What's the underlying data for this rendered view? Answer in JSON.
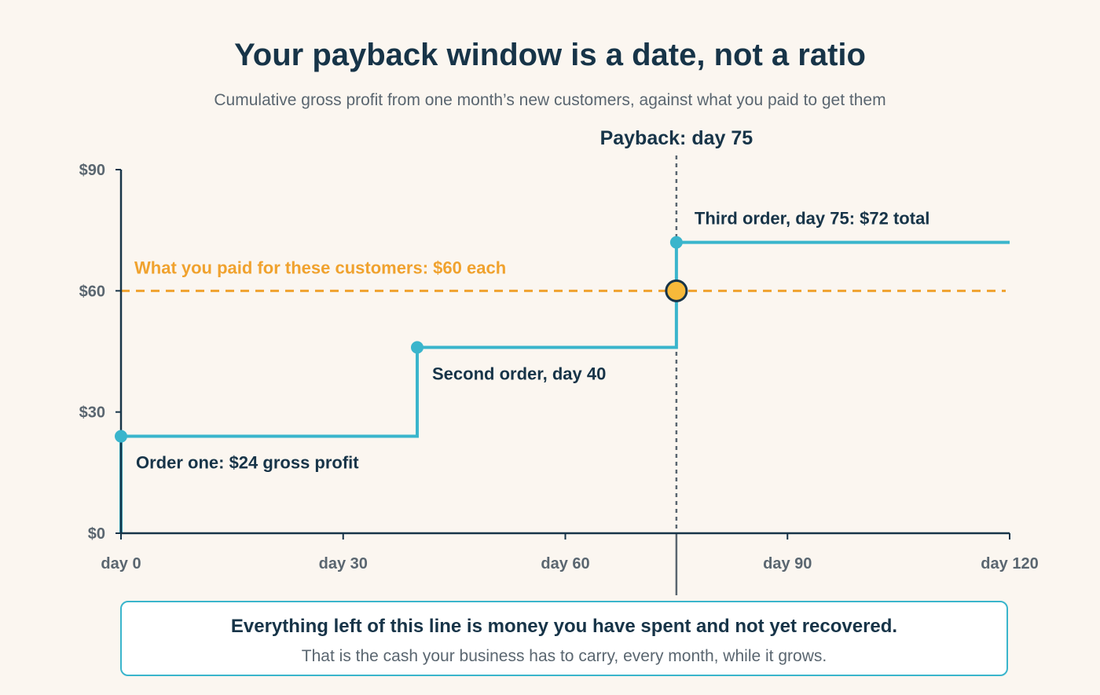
{
  "header": {
    "title": "Your payback window is a date, not a ratio",
    "subtitle": "Cumulative gross profit from one month’s new customers, against what you paid to get them"
  },
  "chart_data": {
    "type": "line",
    "step": true,
    "x_ticks": [
      {
        "value": 0,
        "label": "day 0"
      },
      {
        "value": 30,
        "label": "day 30"
      },
      {
        "value": 60,
        "label": "day 60"
      },
      {
        "value": 90,
        "label": "day 90"
      },
      {
        "value": 120,
        "label": "day 120"
      }
    ],
    "y_ticks": [
      {
        "value": 0,
        "label": "$0"
      },
      {
        "value": 30,
        "label": "$30"
      },
      {
        "value": 60,
        "label": "$60"
      },
      {
        "value": 90,
        "label": "$90"
      }
    ],
    "xlim": [
      0,
      120
    ],
    "ylim": [
      0,
      90
    ],
    "grid": false,
    "series": [
      {
        "color": "#3ab5cc",
        "points": [
          {
            "x": 0,
            "y": 0
          },
          {
            "x": 0,
            "y": 24
          },
          {
            "x": 40,
            "y": 24
          },
          {
            "x": 40,
            "y": 46
          },
          {
            "x": 75,
            "y": 46
          },
          {
            "x": 75,
            "y": 72
          },
          {
            "x": 120,
            "y": 72
          }
        ]
      }
    ],
    "order_markers": [
      {
        "x": 0,
        "y": 24,
        "label": "Order one: $24 gross profit"
      },
      {
        "x": 40,
        "y": 46,
        "label": "Second order, day 40"
      },
      {
        "x": 75,
        "y": 72,
        "label": "Third order, day 75: $72 total"
      }
    ],
    "cost_line": {
      "y": 60,
      "label": "What you paid for these customers: $60 each",
      "color": "#f0a22e"
    },
    "payback": {
      "x": 75,
      "y": 60,
      "label": "Payback: day 75",
      "marker_color": "#f7b93a"
    }
  },
  "callout": {
    "heading": "Everything left of this line is money you have spent and not yet recovered.",
    "body": "That is the cash your business has to carry, every month, while it grows."
  },
  "colors": {
    "axis": "#173448",
    "text": "#173448",
    "tick_text": "#5a6670",
    "payback_line": "#5a6670"
  }
}
